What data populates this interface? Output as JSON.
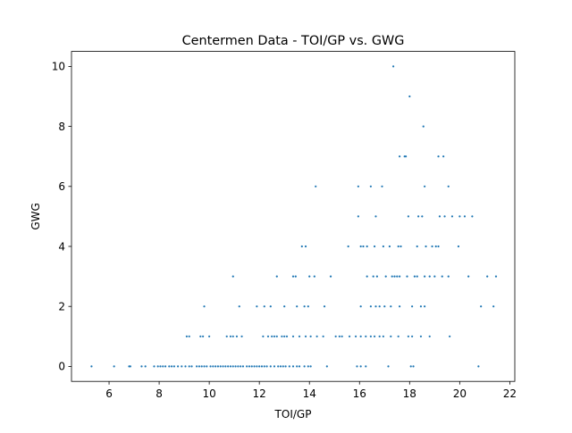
{
  "chart_data": {
    "type": "scatter",
    "title": "Centermen Data - TOI/GP vs. GWG",
    "xlabel": "TOI/GP",
    "ylabel": "GWG",
    "xlim": [
      4.5,
      22.2
    ],
    "ylim": [
      -0.5,
      10.5
    ],
    "xticks": [
      4,
      6,
      8,
      10,
      12,
      14,
      16,
      18,
      20,
      22
    ],
    "yticks": [
      0,
      2,
      4,
      6,
      8,
      10
    ],
    "xtick_labels": [
      "4",
      "6",
      "8",
      "10",
      "12",
      "14",
      "16",
      "18",
      "20",
      "22"
    ],
    "ytick_labels": [
      "0",
      "2",
      "4",
      "6",
      "8",
      "10"
    ],
    "grid": false,
    "marker_color": "#1f77b4",
    "series": [
      {
        "points": [
          [
            5.3,
            0
          ],
          [
            6.2,
            0
          ],
          [
            6.8,
            0
          ],
          [
            6.85,
            0
          ],
          [
            7.3,
            0
          ],
          [
            7.45,
            0
          ],
          [
            7.8,
            0
          ],
          [
            7.95,
            0
          ],
          [
            8.05,
            0
          ],
          [
            8.15,
            0
          ],
          [
            8.25,
            0
          ],
          [
            8.4,
            0
          ],
          [
            8.5,
            0
          ],
          [
            8.6,
            0
          ],
          [
            8.75,
            0
          ],
          [
            8.9,
            0
          ],
          [
            9.05,
            0
          ],
          [
            9.2,
            0
          ],
          [
            9.3,
            0
          ],
          [
            9.5,
            0
          ],
          [
            9.6,
            0
          ],
          [
            9.7,
            0
          ],
          [
            9.8,
            0
          ],
          [
            9.9,
            0
          ],
          [
            10.05,
            0
          ],
          [
            10.15,
            0
          ],
          [
            10.25,
            0
          ],
          [
            10.35,
            0
          ],
          [
            10.45,
            0
          ],
          [
            10.55,
            0
          ],
          [
            10.65,
            0
          ],
          [
            10.75,
            0
          ],
          [
            10.85,
            0
          ],
          [
            10.95,
            0
          ],
          [
            11.05,
            0
          ],
          [
            11.15,
            0
          ],
          [
            11.25,
            0
          ],
          [
            11.35,
            0
          ],
          [
            11.5,
            0
          ],
          [
            11.6,
            0
          ],
          [
            11.7,
            0
          ],
          [
            11.8,
            0
          ],
          [
            11.9,
            0
          ],
          [
            12.0,
            0
          ],
          [
            12.1,
            0
          ],
          [
            12.2,
            0
          ],
          [
            12.3,
            0
          ],
          [
            12.45,
            0
          ],
          [
            12.6,
            0
          ],
          [
            12.75,
            0
          ],
          [
            12.85,
            0
          ],
          [
            12.95,
            0
          ],
          [
            13.05,
            0
          ],
          [
            13.2,
            0
          ],
          [
            13.35,
            0
          ],
          [
            13.5,
            0
          ],
          [
            13.6,
            0
          ],
          [
            13.8,
            0
          ],
          [
            13.95,
            0
          ],
          [
            14.05,
            0
          ],
          [
            14.7,
            0
          ],
          [
            15.9,
            0
          ],
          [
            16.05,
            0
          ],
          [
            16.25,
            0
          ],
          [
            17.15,
            0
          ],
          [
            18.05,
            0
          ],
          [
            18.15,
            0
          ],
          [
            20.75,
            0
          ],
          [
            9.1,
            1
          ],
          [
            9.2,
            1
          ],
          [
            9.65,
            1
          ],
          [
            9.75,
            1
          ],
          [
            10.0,
            1
          ],
          [
            10.7,
            1
          ],
          [
            10.85,
            1
          ],
          [
            10.95,
            1
          ],
          [
            11.1,
            1
          ],
          [
            11.3,
            1
          ],
          [
            12.15,
            1
          ],
          [
            12.35,
            1
          ],
          [
            12.5,
            1
          ],
          [
            12.6,
            1
          ],
          [
            12.7,
            1
          ],
          [
            12.9,
            1
          ],
          [
            13.0,
            1
          ],
          [
            13.1,
            1
          ],
          [
            13.35,
            1
          ],
          [
            13.6,
            1
          ],
          [
            13.85,
            1
          ],
          [
            14.05,
            1
          ],
          [
            14.3,
            1
          ],
          [
            14.55,
            1
          ],
          [
            15.05,
            1
          ],
          [
            15.2,
            1
          ],
          [
            15.3,
            1
          ],
          [
            15.6,
            1
          ],
          [
            15.85,
            1
          ],
          [
            16.05,
            1
          ],
          [
            16.25,
            1
          ],
          [
            16.45,
            1
          ],
          [
            16.6,
            1
          ],
          [
            16.8,
            1
          ],
          [
            16.95,
            1
          ],
          [
            17.25,
            1
          ],
          [
            17.55,
            1
          ],
          [
            17.95,
            1
          ],
          [
            18.1,
            1
          ],
          [
            18.45,
            1
          ],
          [
            18.8,
            1
          ],
          [
            19.6,
            1
          ],
          [
            9.8,
            2
          ],
          [
            11.2,
            2
          ],
          [
            11.9,
            2
          ],
          [
            12.2,
            2
          ],
          [
            12.45,
            2
          ],
          [
            13.0,
            2
          ],
          [
            13.5,
            2
          ],
          [
            13.8,
            2
          ],
          [
            13.95,
            2
          ],
          [
            14.6,
            2
          ],
          [
            16.05,
            2
          ],
          [
            16.45,
            2
          ],
          [
            16.65,
            2
          ],
          [
            16.8,
            2
          ],
          [
            17.0,
            2
          ],
          [
            17.25,
            2
          ],
          [
            17.6,
            2
          ],
          [
            18.1,
            2
          ],
          [
            18.45,
            2
          ],
          [
            18.6,
            2
          ],
          [
            20.85,
            2
          ],
          [
            21.35,
            2
          ],
          [
            10.95,
            3
          ],
          [
            12.7,
            3
          ],
          [
            13.35,
            3
          ],
          [
            13.45,
            3
          ],
          [
            14.0,
            3
          ],
          [
            14.2,
            3
          ],
          [
            14.85,
            3
          ],
          [
            16.3,
            3
          ],
          [
            16.55,
            3
          ],
          [
            16.7,
            3
          ],
          [
            17.05,
            3
          ],
          [
            17.3,
            3
          ],
          [
            17.4,
            3
          ],
          [
            17.5,
            3
          ],
          [
            17.6,
            3
          ],
          [
            17.9,
            3
          ],
          [
            18.2,
            3
          ],
          [
            18.3,
            3
          ],
          [
            18.6,
            3
          ],
          [
            18.8,
            3
          ],
          [
            19.0,
            3
          ],
          [
            19.3,
            3
          ],
          [
            19.55,
            3
          ],
          [
            20.35,
            3
          ],
          [
            21.1,
            3
          ],
          [
            21.45,
            3
          ],
          [
            13.7,
            4
          ],
          [
            13.85,
            4
          ],
          [
            15.55,
            4
          ],
          [
            16.05,
            4
          ],
          [
            16.15,
            4
          ],
          [
            16.3,
            4
          ],
          [
            16.6,
            4
          ],
          [
            16.95,
            4
          ],
          [
            17.2,
            4
          ],
          [
            17.55,
            4
          ],
          [
            17.65,
            4
          ],
          [
            18.3,
            4
          ],
          [
            18.65,
            4
          ],
          [
            18.9,
            4
          ],
          [
            19.05,
            4
          ],
          [
            19.15,
            4
          ],
          [
            19.95,
            4
          ],
          [
            15.95,
            5
          ],
          [
            16.65,
            5
          ],
          [
            17.95,
            5
          ],
          [
            18.35,
            5
          ],
          [
            18.5,
            5
          ],
          [
            19.2,
            5
          ],
          [
            19.4,
            5
          ],
          [
            19.7,
            5
          ],
          [
            20.0,
            5
          ],
          [
            20.2,
            5
          ],
          [
            20.5,
            5
          ],
          [
            14.25,
            6
          ],
          [
            15.95,
            6
          ],
          [
            16.45,
            6
          ],
          [
            16.9,
            6
          ],
          [
            18.6,
            6
          ],
          [
            19.55,
            6
          ],
          [
            17.6,
            7
          ],
          [
            17.8,
            7
          ],
          [
            17.85,
            7
          ],
          [
            19.15,
            7
          ],
          [
            19.35,
            7
          ],
          [
            18.55,
            8
          ],
          [
            18.0,
            9
          ],
          [
            17.35,
            10
          ]
        ]
      }
    ]
  }
}
